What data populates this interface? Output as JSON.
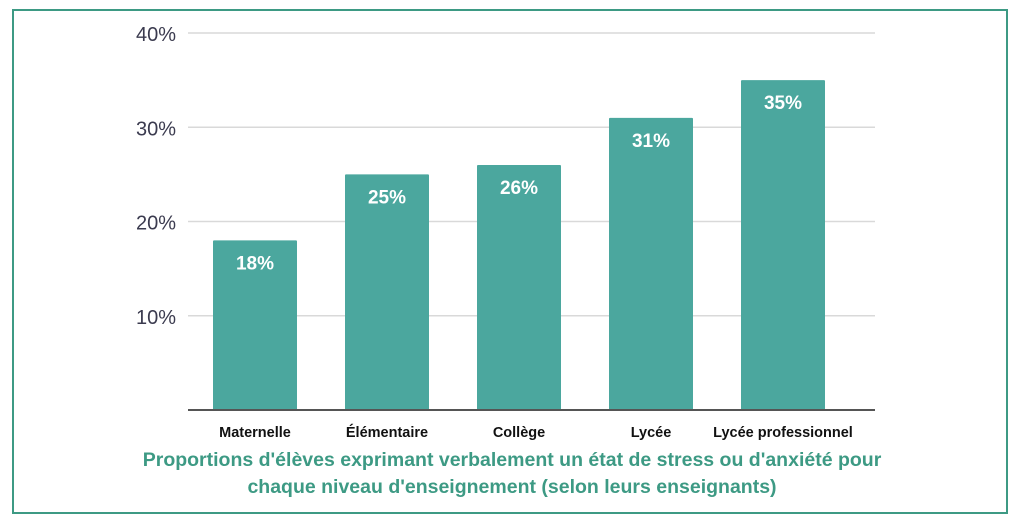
{
  "chart_data": {
    "type": "bar",
    "categories": [
      "Maternelle",
      "Élémentaire",
      "Collège",
      "Lycée",
      "Lycée professionnel"
    ],
    "values": [
      18,
      25,
      26,
      31,
      35
    ],
    "value_labels": [
      "18%",
      "25%",
      "26%",
      "31%",
      "35%"
    ],
    "y_ticks": [
      10,
      20,
      30,
      40
    ],
    "y_tick_labels": [
      "10%",
      "20%",
      "30%",
      "40%"
    ],
    "ylim": [
      0,
      40
    ],
    "grid": true,
    "bar_color": "#4ba79e",
    "caption_lines": [
      "Proportions d'élèves exprimant verbalement un état de stress ou d'anxiété pour",
      "chaque niveau d'enseignement (selon leurs enseignants)"
    ]
  },
  "colors": {
    "accent": "#3d9a84",
    "bar": "#4ba79e",
    "grid": "#d9d9d9",
    "axis": "#555555"
  }
}
